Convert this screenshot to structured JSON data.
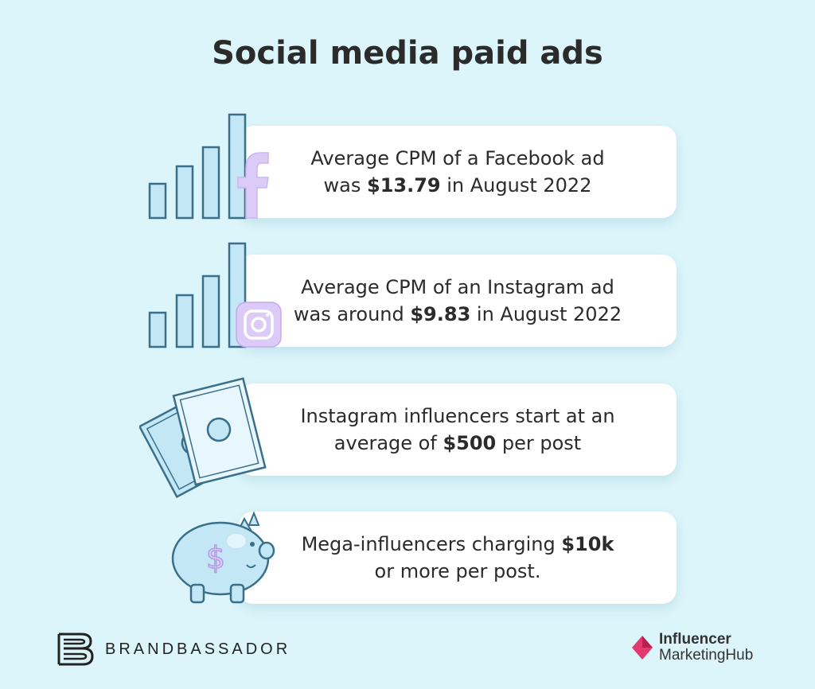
{
  "title": "Social media paid ads",
  "cards": [
    {
      "line1_pre": "Average CPM of a Facebook ad",
      "line2_pre": "was ",
      "line2_bold": "$13.79",
      "line2_post": " in August 2022",
      "icon": "facebook-bars-icon"
    },
    {
      "line1_pre": "Average CPM of an Instagram ad",
      "line2_pre": "was around ",
      "line2_bold": "$9.83",
      "line2_post": " in August 2022",
      "icon": "instagram-bars-icon"
    },
    {
      "line1_pre": "Instagram influencers start at an",
      "line2_pre": "average of ",
      "line2_bold": "$500",
      "line2_post": " per post",
      "icon": "banknotes-icon"
    },
    {
      "line1_pre": "Mega-influencers charging ",
      "line1_bold": "$10k",
      "line2_pre": "or more per post.",
      "icon": "piggy-bank-icon"
    }
  ],
  "footer": {
    "brand_left": "BRANDBASSADOR",
    "brand_right_line1": "Influencer",
    "brand_right_line2": "MarketingHub"
  },
  "colors": {
    "background": "#dcf5fb",
    "icon_blue": "#c3e7f5",
    "icon_stroke": "#3a6f8a",
    "icon_purple": "#dccbf7",
    "accent_pink": "#e23a6f"
  }
}
